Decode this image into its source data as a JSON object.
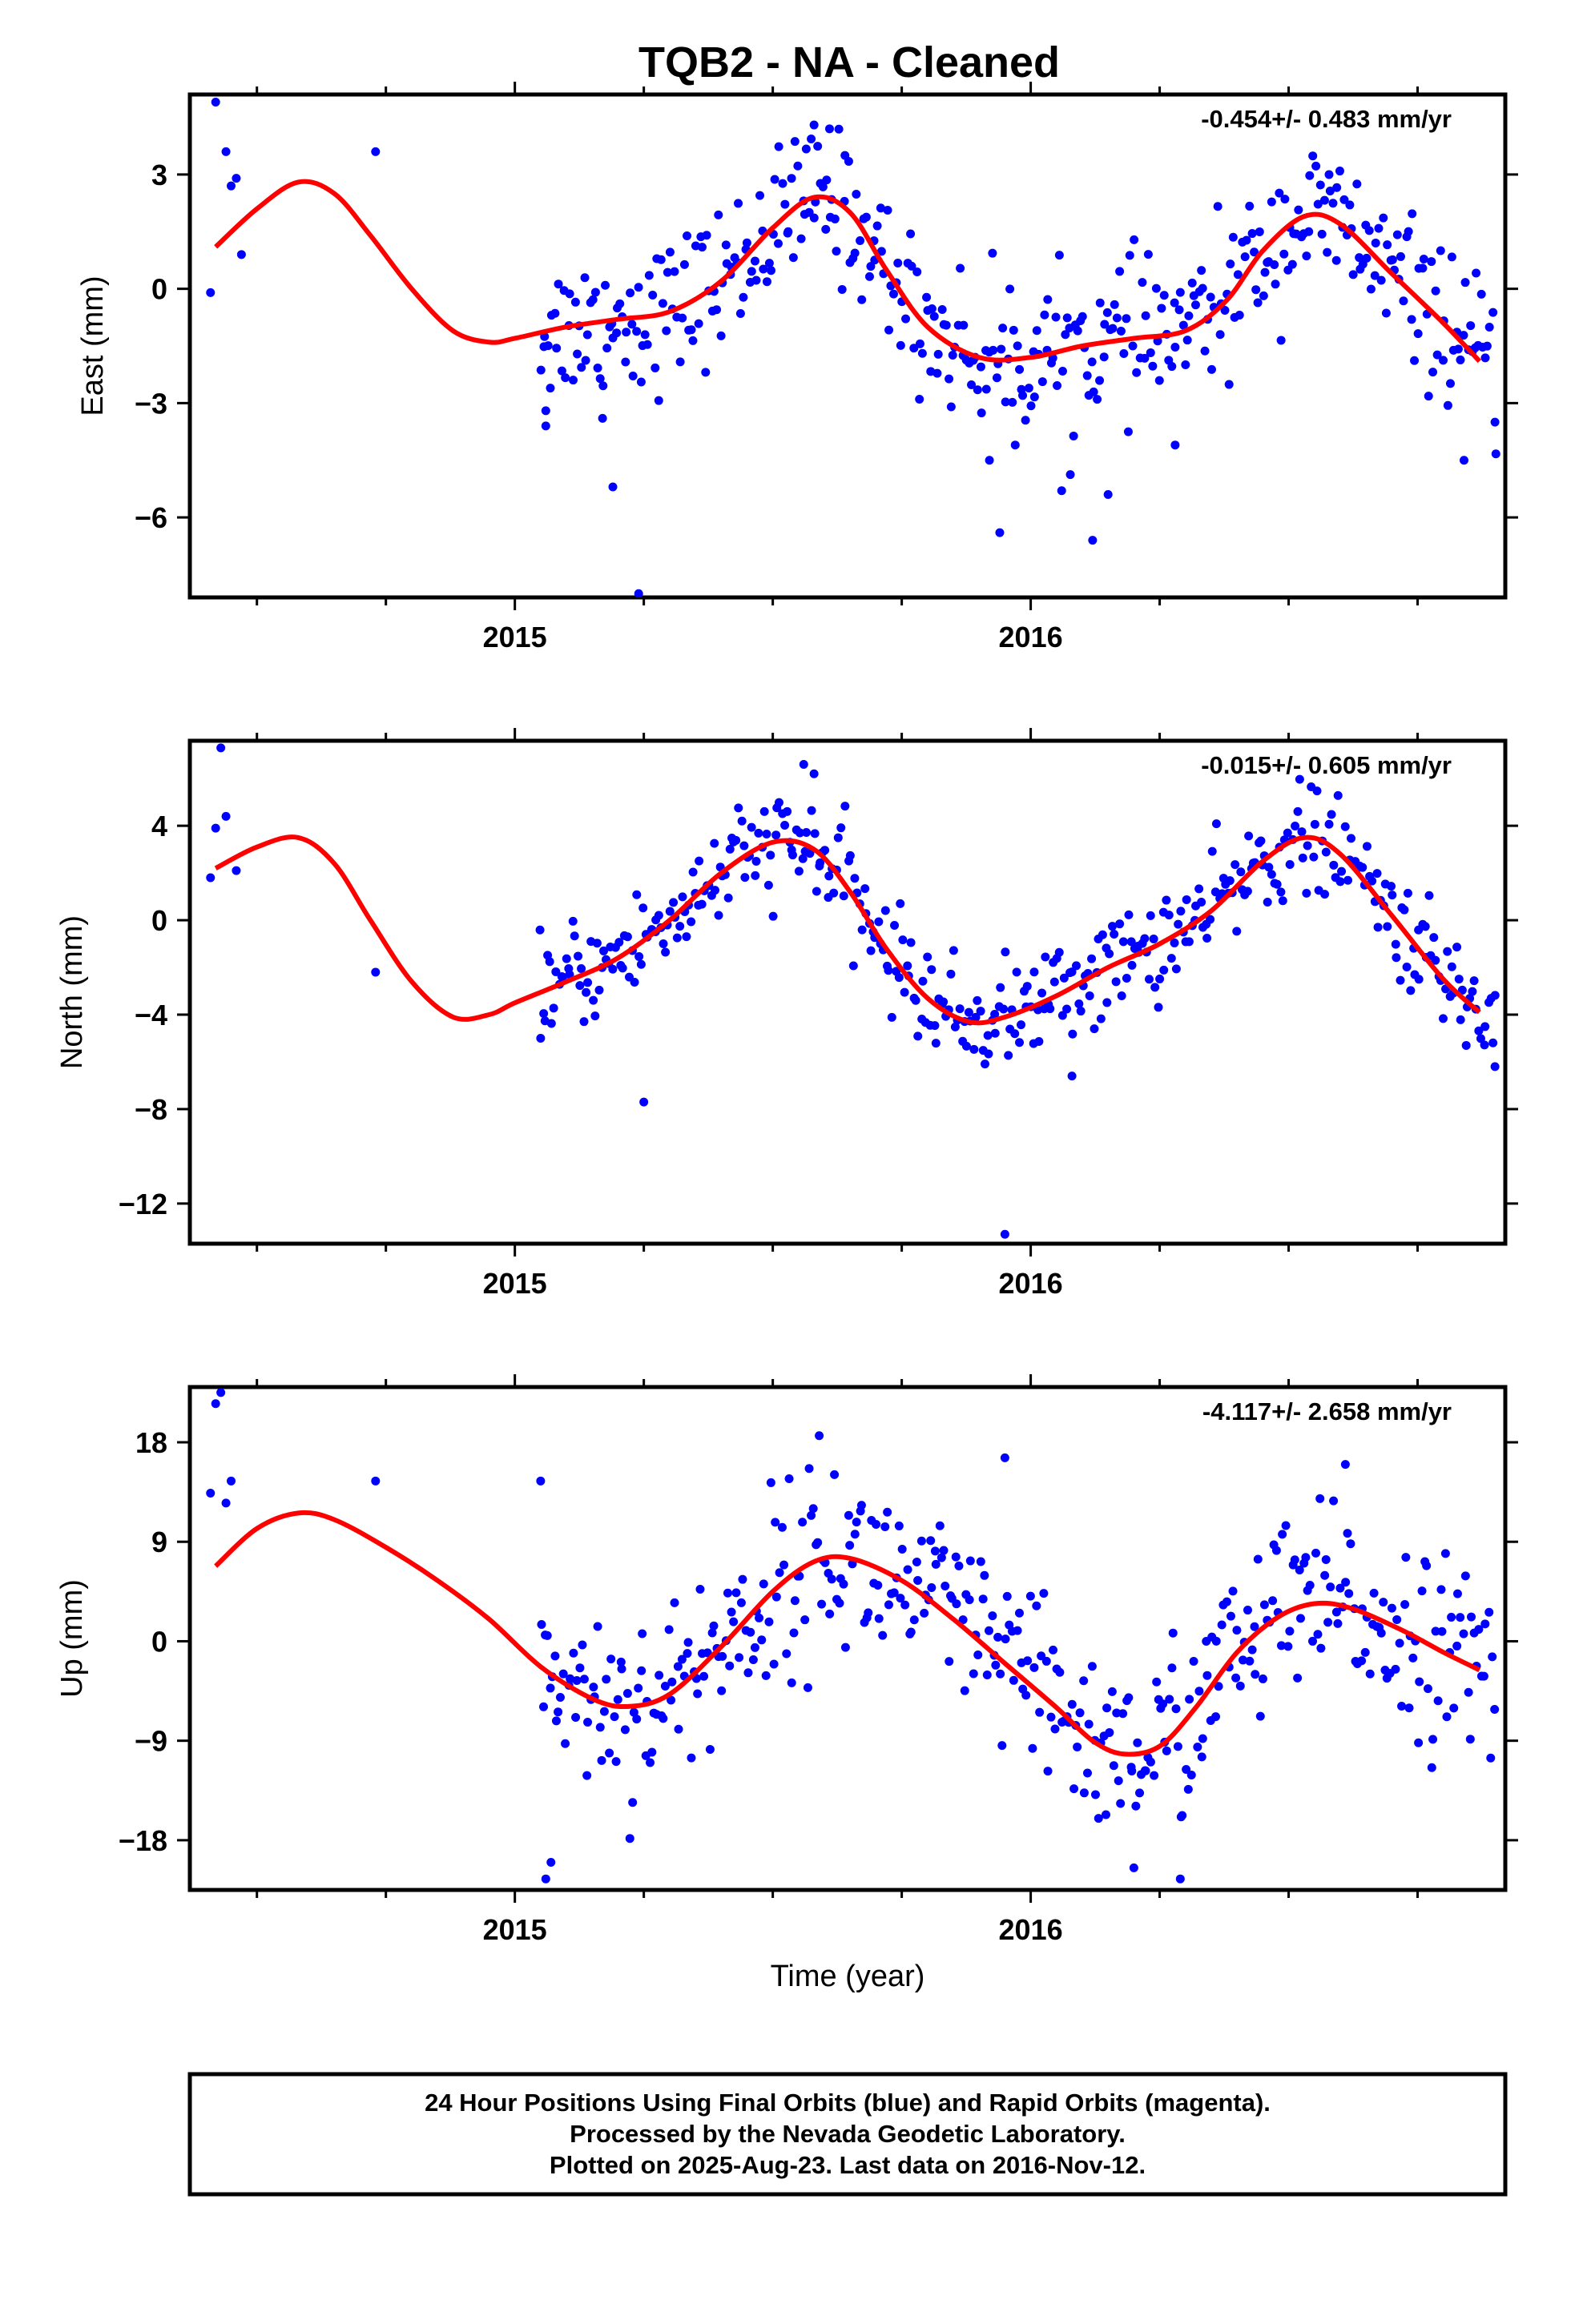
{
  "title": "TQB2  - NA - Cleaned",
  "xlabel": "Time (year)",
  "footer": {
    "line1": "24 Hour Positions Using Final Orbits (blue) and Rapid Orbits (magenta).",
    "line2": "Processed by the Nevada Geodetic Laboratory.",
    "line3": "Plotted on 2025-Aug-23. Last data on 2016-Nov-12."
  },
  "colors": {
    "data": "#0000ff",
    "model": "#ff0000",
    "frame": "#000000"
  },
  "chart_data": [
    {
      "type": "scatter",
      "ylabel": "East (mm)",
      "rate": "-0.454+/- 0.483 mm/yr",
      "xlim": [
        2014.37,
        2016.92
      ],
      "ylim": [
        -8.1,
        5.1
      ],
      "x_ticks": [
        2015,
        2016
      ],
      "y_ticks": [
        3,
        0,
        -3,
        -6
      ],
      "y_tick_labels": [
        "3",
        "0",
        "−3",
        "−6"
      ],
      "fit": [
        [
          2014.42,
          1.1
        ],
        [
          2014.5,
          2.1
        ],
        [
          2014.58,
          2.8
        ],
        [
          2014.65,
          2.5
        ],
        [
          2014.72,
          1.4
        ],
        [
          2014.8,
          0.0
        ],
        [
          2014.88,
          -1.1
        ],
        [
          2014.95,
          -1.4
        ],
        [
          2015.0,
          -1.3
        ],
        [
          2015.1,
          -1.0
        ],
        [
          2015.2,
          -0.8
        ],
        [
          2015.3,
          -0.6
        ],
        [
          2015.4,
          0.2
        ],
        [
          2015.5,
          1.6
        ],
        [
          2015.58,
          2.4
        ],
        [
          2015.65,
          2.0
        ],
        [
          2015.72,
          0.5
        ],
        [
          2015.8,
          -1.0
        ],
        [
          2015.9,
          -1.8
        ],
        [
          2016.0,
          -1.8
        ],
        [
          2016.1,
          -1.5
        ],
        [
          2016.2,
          -1.3
        ],
        [
          2016.3,
          -1.1
        ],
        [
          2016.38,
          -0.3
        ],
        [
          2016.45,
          1.0
        ],
        [
          2016.53,
          1.9
        ],
        [
          2016.6,
          1.7
        ],
        [
          2016.7,
          0.4
        ],
        [
          2016.8,
          -0.9
        ],
        [
          2016.87,
          -1.9
        ]
      ],
      "outliers": [
        [
          2014.42,
          4.9
        ],
        [
          2014.44,
          3.6
        ],
        [
          2014.45,
          2.7
        ],
        [
          2014.46,
          2.9
        ],
        [
          2014.41,
          -0.1
        ],
        [
          2014.47,
          0.9
        ],
        [
          2014.73,
          3.6
        ],
        [
          2015.06,
          -3.6
        ],
        [
          2015.06,
          -3.2
        ],
        [
          2015.19,
          -5.2
        ],
        [
          2015.24,
          -8.0
        ],
        [
          2015.17,
          -3.4
        ],
        [
          2015.58,
          4.3
        ],
        [
          2015.61,
          4.2
        ],
        [
          2015.94,
          -6.4
        ],
        [
          2015.92,
          -4.5
        ],
        [
          2015.97,
          -4.1
        ],
        [
          2016.06,
          -5.3
        ],
        [
          2016.12,
          -6.6
        ],
        [
          2016.15,
          -5.4
        ],
        [
          2016.28,
          -4.1
        ],
        [
          2016.84,
          -4.5
        ],
        [
          2016.9,
          -3.5
        ]
      ],
      "noise": 0.95,
      "n": 420,
      "x_range": [
        2015.05,
        2016.9
      ]
    },
    {
      "type": "scatter",
      "ylabel": "North (mm)",
      "rate": "-0.015+/- 0.605 mm/yr",
      "xlim": [
        2014.37,
        2016.92
      ],
      "ylim": [
        -13.7,
        7.6
      ],
      "x_ticks": [
        2015,
        2016
      ],
      "y_ticks": [
        4,
        0,
        -4,
        -8,
        -12
      ],
      "y_tick_labels": [
        "4",
        "0",
        "−4",
        "−8",
        "−12"
      ],
      "fit": [
        [
          2014.42,
          2.2
        ],
        [
          2014.5,
          3.1
        ],
        [
          2014.58,
          3.5
        ],
        [
          2014.65,
          2.4
        ],
        [
          2014.72,
          0.0
        ],
        [
          2014.8,
          -2.6
        ],
        [
          2014.88,
          -4.1
        ],
        [
          2014.95,
          -4.0
        ],
        [
          2015.0,
          -3.5
        ],
        [
          2015.1,
          -2.6
        ],
        [
          2015.2,
          -1.6
        ],
        [
          2015.3,
          0.0
        ],
        [
          2015.4,
          2.0
        ],
        [
          2015.5,
          3.3
        ],
        [
          2015.58,
          3.0
        ],
        [
          2015.65,
          1.2
        ],
        [
          2015.72,
          -1.2
        ],
        [
          2015.8,
          -3.3
        ],
        [
          2015.88,
          -4.3
        ],
        [
          2015.95,
          -4.1
        ],
        [
          2016.05,
          -3.2
        ],
        [
          2016.15,
          -2.0
        ],
        [
          2016.25,
          -1.0
        ],
        [
          2016.35,
          0.4
        ],
        [
          2016.45,
          2.5
        ],
        [
          2016.53,
          3.5
        ],
        [
          2016.6,
          2.8
        ],
        [
          2016.7,
          0.2
        ],
        [
          2016.8,
          -2.5
        ],
        [
          2016.87,
          -3.9
        ]
      ],
      "outliers": [
        [
          2014.43,
          7.3
        ],
        [
          2014.42,
          3.9
        ],
        [
          2014.44,
          4.4
        ],
        [
          2014.41,
          1.8
        ],
        [
          2014.46,
          2.1
        ],
        [
          2014.73,
          -2.2
        ],
        [
          2015.05,
          -5.0
        ],
        [
          2015.25,
          -7.7
        ],
        [
          2015.56,
          6.6
        ],
        [
          2015.58,
          6.2
        ],
        [
          2015.95,
          -13.3
        ],
        [
          2016.08,
          -6.6
        ],
        [
          2016.9,
          -6.2
        ]
      ],
      "noise": 1.1,
      "n": 420,
      "x_range": [
        2015.05,
        2016.9
      ]
    },
    {
      "type": "scatter",
      "ylabel": "Up (mm)",
      "rate": "-4.117+/- 2.658 mm/yr",
      "xlim": [
        2014.37,
        2016.92
      ],
      "ylim": [
        -22.5,
        23
      ],
      "x_ticks": [
        2015,
        2016
      ],
      "y_ticks": [
        18,
        9,
        0,
        -9,
        -18
      ],
      "y_tick_labels": [
        "18",
        "9",
        "0",
        "−9",
        "−18"
      ],
      "fit": [
        [
          2014.42,
          6.8
        ],
        [
          2014.5,
          10.2
        ],
        [
          2014.58,
          11.6
        ],
        [
          2014.65,
          11.0
        ],
        [
          2014.75,
          8.5
        ],
        [
          2014.85,
          5.5
        ],
        [
          2014.95,
          2.0
        ],
        [
          2015.05,
          -2.3
        ],
        [
          2015.15,
          -5.2
        ],
        [
          2015.22,
          -5.9
        ],
        [
          2015.3,
          -4.8
        ],
        [
          2015.4,
          -0.5
        ],
        [
          2015.5,
          4.5
        ],
        [
          2015.58,
          7.2
        ],
        [
          2015.65,
          7.5
        ],
        [
          2015.75,
          5.5
        ],
        [
          2015.85,
          2.0
        ],
        [
          2015.95,
          -2.0
        ],
        [
          2016.05,
          -6.0
        ],
        [
          2016.12,
          -9.0
        ],
        [
          2016.18,
          -10.2
        ],
        [
          2016.25,
          -9.5
        ],
        [
          2016.32,
          -6.0
        ],
        [
          2016.4,
          -1.0
        ],
        [
          2016.48,
          2.2
        ],
        [
          2016.55,
          3.4
        ],
        [
          2016.62,
          3.0
        ],
        [
          2016.72,
          1.0
        ],
        [
          2016.8,
          -1.0
        ],
        [
          2016.87,
          -2.6
        ]
      ],
      "outliers": [
        [
          2014.42,
          21.5
        ],
        [
          2014.43,
          22.5
        ],
        [
          2014.41,
          13.4
        ],
        [
          2014.44,
          12.5
        ],
        [
          2014.45,
          14.5
        ],
        [
          2014.73,
          14.5
        ],
        [
          2015.05,
          14.5
        ],
        [
          2015.06,
          -21.5
        ],
        [
          2015.07,
          -20.0
        ],
        [
          2015.59,
          18.6
        ],
        [
          2015.95,
          16.6
        ],
        [
          2016.2,
          -20.5
        ],
        [
          2016.29,
          -21.5
        ],
        [
          2016.61,
          16.0
        ]
      ],
      "noise": 4.2,
      "n": 420,
      "x_range": [
        2015.05,
        2016.9
      ]
    }
  ]
}
